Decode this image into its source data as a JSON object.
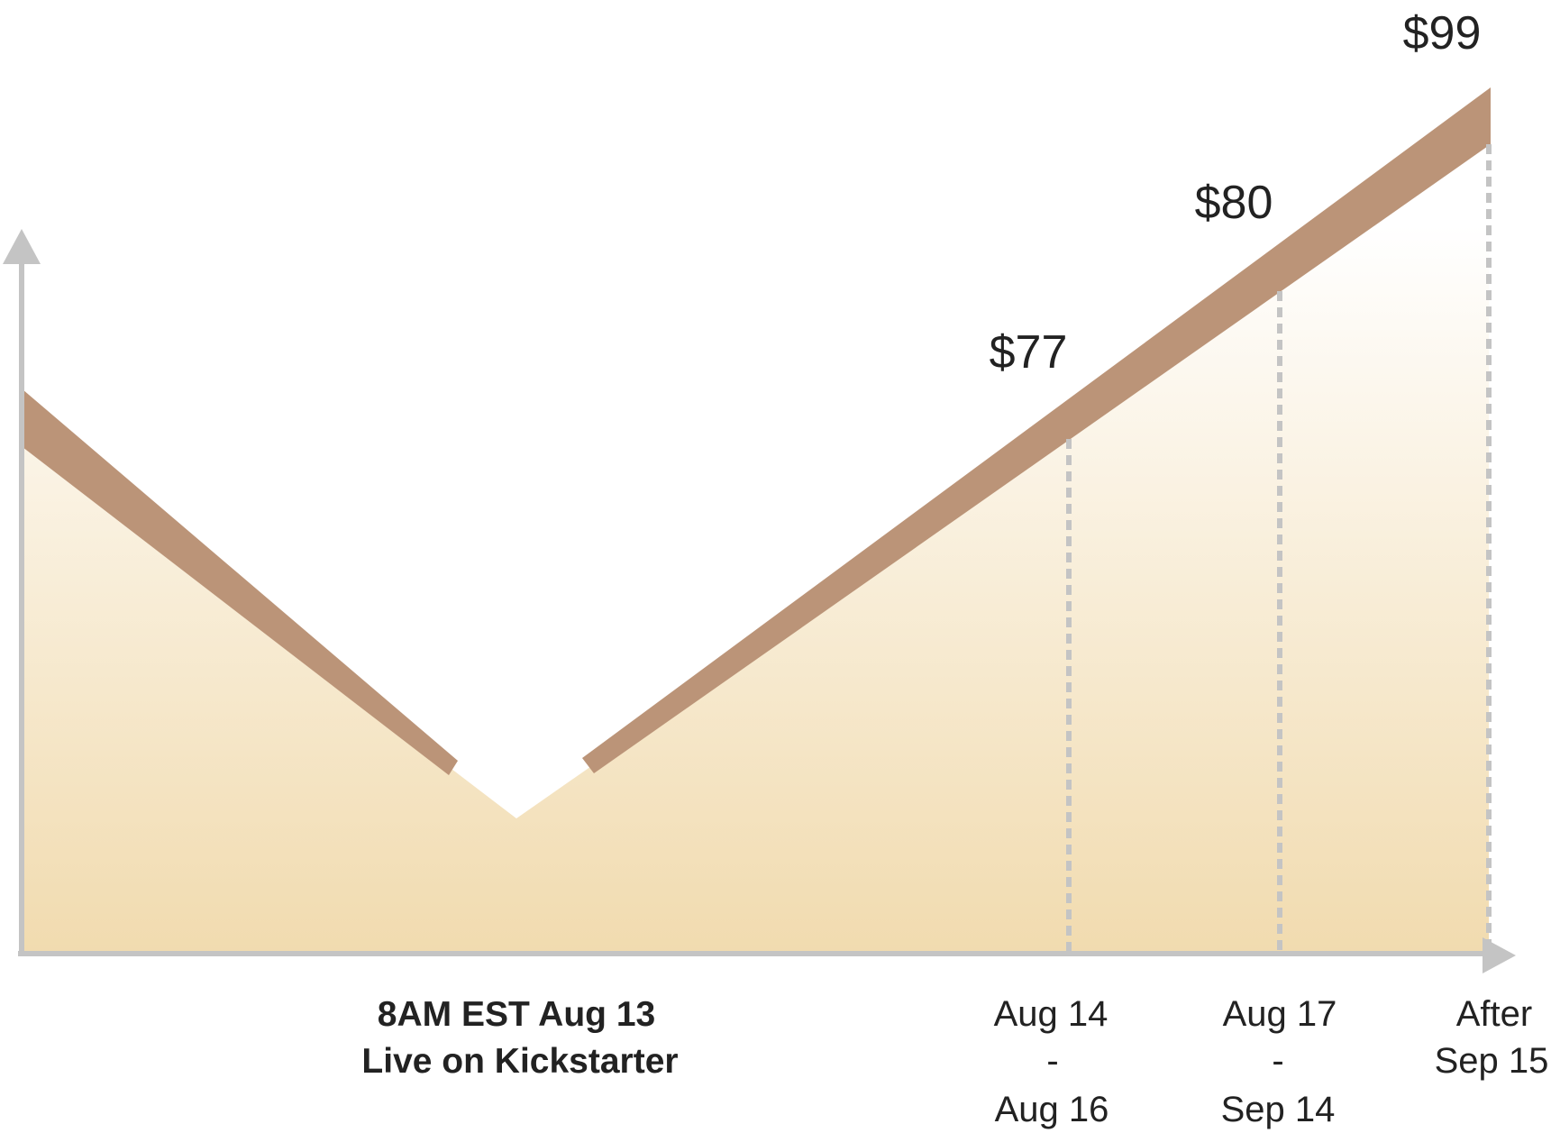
{
  "chart_data": {
    "type": "area",
    "title": "",
    "xlabel": "",
    "ylabel": "",
    "grid": false,
    "colors": {
      "band": "#bb9478",
      "fill_top": "#ffffff",
      "fill_bottom": "#f1dbaf",
      "axis": "#c4c4c4",
      "dash": "#c4c4c4",
      "text": "#222222"
    },
    "launch": {
      "line1": "8AM EST Aug 13",
      "line2": "Live on Kickstarter"
    },
    "tiers": [
      {
        "price": "$77",
        "value": 77,
        "date_start": "Aug 14",
        "separator": "-",
        "date_end": "Aug 16"
      },
      {
        "price": "$80",
        "value": 80,
        "date_start": "Aug 17",
        "separator": "-",
        "date_end": "Sep 14"
      },
      {
        "price": "$99",
        "value": 99,
        "date_start": "After",
        "separator": "",
        "date_end": "Sep 15"
      }
    ]
  }
}
